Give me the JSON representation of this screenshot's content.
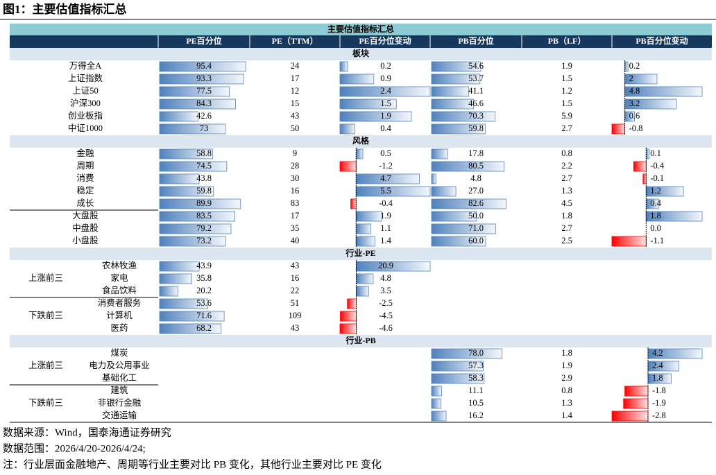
{
  "title": "图1：主要估值指标汇总",
  "table": {
    "caption": "主要估值指标汇总",
    "columns": [
      "PE百分位",
      "PE（TTM）",
      "PE百分位变动",
      "PB百分位",
      "PB（LF）",
      "PB百分位变动"
    ],
    "sections": [
      {
        "title": "板块",
        "rows": [
          {
            "name": "万得全A",
            "cells": [
              "95.4",
              "24",
              "0.2",
              "54.6",
              "1.9",
              "0.2"
            ]
          },
          {
            "name": "上证指数",
            "cells": [
              "93.3",
              "17",
              "0.9",
              "53.7",
              "1.5",
              "2"
            ]
          },
          {
            "name": "上证50",
            "cells": [
              "77.5",
              "12",
              "2.4",
              "41.1",
              "1.2",
              "4.8"
            ]
          },
          {
            "name": "沪深300",
            "cells": [
              "84.3",
              "15",
              "1.5",
              "46.6",
              "1.5",
              "3.2"
            ]
          },
          {
            "name": "创业板指",
            "cells": [
              "42.6",
              "43",
              "1.9",
              "70.3",
              "5.9",
              "0.6"
            ]
          },
          {
            "name": "中证1000",
            "cells": [
              "73",
              "50",
              "0.4",
              "59.8",
              "2.7",
              "-0.8"
            ]
          }
        ]
      },
      {
        "title": "风格",
        "rows": [
          {
            "name": "金融",
            "cells": [
              "58.8",
              "9",
              "0.5",
              "17.8",
              "0.8",
              "0.1"
            ]
          },
          {
            "name": "周期",
            "cells": [
              "74.5",
              "28",
              "-1.2",
              "80.5",
              "2.2",
              "-0.4"
            ]
          },
          {
            "name": "消费",
            "cells": [
              "43.8",
              "30",
              "4.7",
              "4.8",
              "2.7",
              "-0.1"
            ]
          },
          {
            "name": "稳定",
            "cells": [
              "59.8",
              "16",
              "5.5",
              "27.0",
              "1.3",
              "1.2"
            ]
          },
          {
            "name": "成长",
            "cells": [
              "89.9",
              "83",
              "-0.4",
              "82.6",
              "4.5",
              "0.4"
            ]
          },
          {
            "name": "大盘股",
            "cells": [
              "83.5",
              "17",
              "1.9",
              "50.0",
              "1.8",
              "1.8"
            ]
          },
          {
            "name": "中盘股",
            "cells": [
              "79.2",
              "35",
              "1.1",
              "71.0",
              "2.7",
              "0.0"
            ]
          },
          {
            "name": "小盘股",
            "cells": [
              "73.2",
              "40",
              "1.4",
              "60.0",
              "2.5",
              "-1.1"
            ]
          }
        ]
      },
      {
        "title": "行业-PE",
        "groups": [
          {
            "label": "上涨前三",
            "rows": [
              {
                "name": "农林牧渔",
                "cells": [
                  "43.9",
                  "43",
                  "20.9",
                  null,
                  null,
                  null
                ]
              },
              {
                "name": "家电",
                "cells": [
                  "35.8",
                  "16",
                  "4.8",
                  null,
                  null,
                  null
                ]
              },
              {
                "name": "食品饮料",
                "cells": [
                  "20.2",
                  "22",
                  "3.5",
                  null,
                  null,
                  null
                ]
              }
            ]
          },
          {
            "label": "下跌前三",
            "rows": [
              {
                "name": "消费者服务",
                "cells": [
                  "53.6",
                  "51",
                  "-2.5",
                  null,
                  null,
                  null
                ]
              },
              {
                "name": "计算机",
                "cells": [
                  "71.6",
                  "109",
                  "-4.5",
                  null,
                  null,
                  null
                ]
              },
              {
                "name": "医药",
                "cells": [
                  "68.2",
                  "43",
                  "-4.6",
                  null,
                  null,
                  null
                ]
              }
            ]
          }
        ]
      },
      {
        "title": "行业-PB",
        "groups": [
          {
            "label": "上涨前三",
            "rows": [
              {
                "name": "煤炭",
                "cells": [
                  null,
                  null,
                  null,
                  "78.0",
                  "1.8",
                  "4.2"
                ]
              },
              {
                "name": "电力及公用事业",
                "cells": [
                  null,
                  null,
                  null,
                  "57.3",
                  "1.9",
                  "2.4"
                ]
              },
              {
                "name": "基础化工",
                "cells": [
                  null,
                  null,
                  null,
                  "58.3",
                  "2.9",
                  "1.8"
                ]
              }
            ]
          },
          {
            "label": "下跌前三",
            "rows": [
              {
                "name": "建筑",
                "cells": [
                  null,
                  null,
                  null,
                  "11.1",
                  "0.8",
                  "-1.8"
                ]
              },
              {
                "name": "非银行金融",
                "cells": [
                  null,
                  null,
                  null,
                  "10.5",
                  "1.3",
                  "-1.9"
                ]
              },
              {
                "name": "交通运输",
                "cells": [
                  null,
                  null,
                  null,
                  "16.2",
                  "1.4",
                  "-2.8"
                ]
              }
            ]
          }
        ]
      }
    ]
  },
  "notes": [
    "数据来源：Wind，国泰海通证券研究",
    "数据范围：2026/4/20-2026/4/24;",
    "注：行业层面金融地产、周期等行业主要对比 PB 变化，其他行业主要对比 PE 变化"
  ]
}
